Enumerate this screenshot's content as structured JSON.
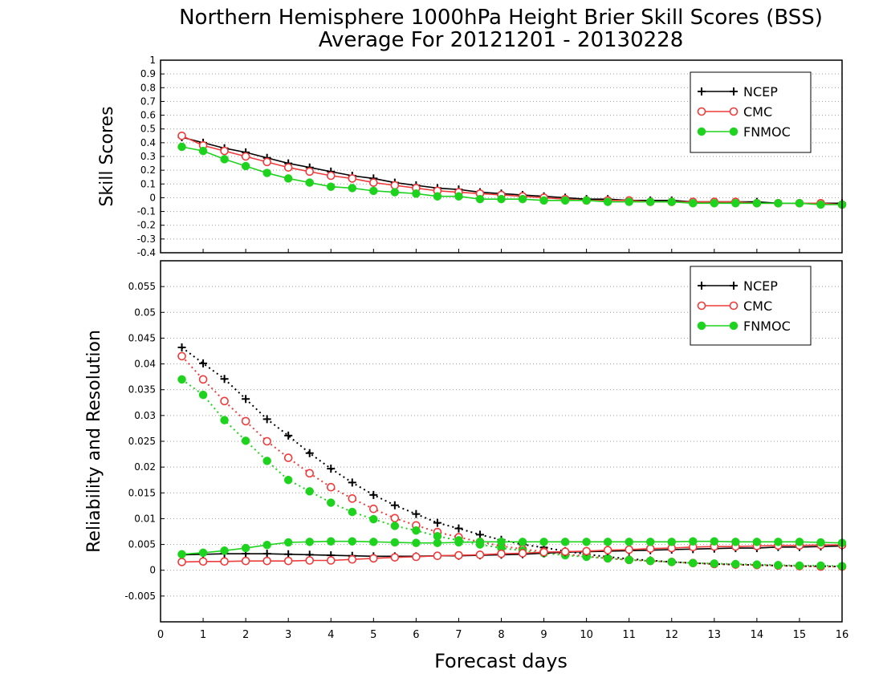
{
  "title_line1": "Northern Hemisphere 1000hPa Height Brier Skill Scores (BSS)",
  "title_line2": "Average For 20121201 - 20130228",
  "xlabel": "Forecast days",
  "colors": {
    "NCEP": "#000000",
    "CMC": "#ee3b3b",
    "FNMOC": "#1ed31e"
  },
  "chart_data": [
    {
      "type": "line",
      "ylabel": "Skill Scores",
      "xlim": [
        0,
        16
      ],
      "ylim": [
        -0.4,
        1
      ],
      "x_ticks": [
        0,
        1,
        2,
        3,
        4,
        5,
        6,
        7,
        8,
        9,
        10,
        11,
        12,
        13,
        14,
        15,
        16
      ],
      "y_ticks": [
        "-0.4",
        "-0.3",
        "-0.2",
        "-0.1",
        "0",
        "0.1",
        "0.2",
        "0.3",
        "0.4",
        "0.5",
        "0.6",
        "0.7",
        "0.8",
        "0.9",
        "1"
      ],
      "grid": true,
      "legend_position": "top-right",
      "x": [
        0.5,
        1,
        1.5,
        2,
        2.5,
        3,
        3.5,
        4,
        4.5,
        5,
        5.5,
        6,
        6.5,
        7,
        7.5,
        8,
        8.5,
        9,
        9.5,
        10,
        10.5,
        11,
        11.5,
        12,
        12.5,
        13,
        13.5,
        14,
        14.5,
        15,
        15.5,
        16
      ],
      "series": [
        {
          "name": "NCEP",
          "marker": "plus",
          "style": "solid",
          "values": [
            0.44,
            0.4,
            0.36,
            0.33,
            0.29,
            0.25,
            0.22,
            0.19,
            0.16,
            0.14,
            0.11,
            0.09,
            0.07,
            0.06,
            0.04,
            0.03,
            0.02,
            0.01,
            0.0,
            -0.01,
            -0.01,
            -0.02,
            -0.02,
            -0.02,
            -0.03,
            -0.03,
            -0.03,
            -0.03,
            -0.04,
            -0.04,
            -0.04,
            -0.04
          ]
        },
        {
          "name": "CMC",
          "marker": "circle-open",
          "style": "solid",
          "values": [
            0.45,
            0.38,
            0.34,
            0.3,
            0.26,
            0.22,
            0.19,
            0.16,
            0.14,
            0.11,
            0.09,
            0.07,
            0.05,
            0.04,
            0.03,
            0.02,
            0.01,
            0.0,
            -0.01,
            -0.02,
            -0.02,
            -0.02,
            -0.03,
            -0.03,
            -0.03,
            -0.03,
            -0.03,
            -0.04,
            -0.04,
            -0.04,
            -0.04,
            -0.05
          ]
        },
        {
          "name": "FNMOC",
          "marker": "circle-filled",
          "style": "solid",
          "values": [
            0.37,
            0.34,
            0.28,
            0.23,
            0.18,
            0.14,
            0.11,
            0.08,
            0.07,
            0.05,
            0.04,
            0.03,
            0.01,
            0.01,
            -0.01,
            -0.01,
            -0.01,
            -0.02,
            -0.02,
            -0.02,
            -0.03,
            -0.03,
            -0.03,
            -0.03,
            -0.04,
            -0.04,
            -0.04,
            -0.04,
            -0.04,
            -0.04,
            -0.05,
            -0.05
          ]
        }
      ]
    },
    {
      "type": "line",
      "ylabel": "Reliability and Resolution",
      "xlim": [
        0,
        16
      ],
      "ylim": [
        -0.01,
        0.06
      ],
      "x_ticks": [
        0,
        1,
        2,
        3,
        4,
        5,
        6,
        7,
        8,
        9,
        10,
        11,
        12,
        13,
        14,
        15,
        16
      ],
      "y_ticks": [
        "-0.005",
        "0",
        "0.005",
        "0.01",
        "0.015",
        "0.02",
        "0.025",
        "0.03",
        "0.035",
        "0.04",
        "0.045",
        "0.05",
        "0.055"
      ],
      "grid": true,
      "legend_position": "top-right",
      "x": [
        0.5,
        1,
        1.5,
        2,
        2.5,
        3,
        3.5,
        4,
        4.5,
        5,
        5.5,
        6,
        6.5,
        7,
        7.5,
        8,
        8.5,
        9,
        9.5,
        10,
        10.5,
        11,
        11.5,
        12,
        12.5,
        13,
        13.5,
        14,
        14.5,
        15,
        15.5,
        16
      ],
      "series": [
        {
          "name": "NCEP",
          "group": "resolution",
          "marker": "plus",
          "style": "dotted",
          "values": [
            0.0432,
            0.0401,
            0.0371,
            0.0332,
            0.0293,
            0.0261,
            0.0227,
            0.0197,
            0.017,
            0.0146,
            0.0126,
            0.0109,
            0.0092,
            0.0081,
            0.0069,
            0.0059,
            0.005,
            0.0044,
            0.0037,
            0.0031,
            0.0026,
            0.0022,
            0.0019,
            0.0016,
            0.0014,
            0.0012,
            0.0011,
            0.001,
            0.0009,
            0.0008,
            0.0008,
            0.0007
          ]
        },
        {
          "name": "CMC",
          "group": "resolution",
          "marker": "circle-open",
          "style": "dotted",
          "values": [
            0.0415,
            0.037,
            0.0328,
            0.0289,
            0.025,
            0.0218,
            0.0188,
            0.0161,
            0.0139,
            0.0119,
            0.0101,
            0.0087,
            0.0074,
            0.0064,
            0.0055,
            0.0047,
            0.0041,
            0.0036,
            0.0031,
            0.0027,
            0.0023,
            0.002,
            0.0018,
            0.0016,
            0.0014,
            0.0012,
            0.0011,
            0.001,
            0.0009,
            0.0008,
            0.0007,
            0.0007
          ]
        },
        {
          "name": "FNMOC",
          "group": "resolution",
          "marker": "circle-filled",
          "style": "dotted",
          "values": [
            0.037,
            0.034,
            0.0291,
            0.0251,
            0.0212,
            0.0175,
            0.0153,
            0.0131,
            0.0113,
            0.0099,
            0.0086,
            0.0077,
            0.0066,
            0.0058,
            0.005,
            0.0043,
            0.0038,
            0.0033,
            0.0029,
            0.0026,
            0.0023,
            0.002,
            0.0018,
            0.0016,
            0.0014,
            0.0013,
            0.0012,
            0.0011,
            0.001,
            0.0009,
            0.0009,
            0.0008
          ]
        },
        {
          "name": "NCEP",
          "group": "reliability",
          "marker": "plus",
          "style": "solid",
          "values": [
            0.003,
            0.0031,
            0.0032,
            0.0032,
            0.0032,
            0.0031,
            0.003,
            0.0029,
            0.0028,
            0.0027,
            0.0027,
            0.0027,
            0.0028,
            0.0028,
            0.0029,
            0.003,
            0.0031,
            0.0033,
            0.0035,
            0.0036,
            0.0037,
            0.0038,
            0.0039,
            0.004,
            0.0041,
            0.0042,
            0.0043,
            0.0043,
            0.0045,
            0.0045,
            0.0046,
            0.0047
          ]
        },
        {
          "name": "CMC",
          "group": "reliability",
          "marker": "circle-open",
          "style": "solid",
          "values": [
            0.0016,
            0.0017,
            0.0017,
            0.0018,
            0.0018,
            0.0018,
            0.0019,
            0.0019,
            0.0021,
            0.0023,
            0.0025,
            0.0026,
            0.0028,
            0.0029,
            0.003,
            0.0032,
            0.0033,
            0.0035,
            0.0036,
            0.0037,
            0.0039,
            0.004,
            0.0042,
            0.0043,
            0.0045,
            0.0046,
            0.0046,
            0.0047,
            0.0048,
            0.0048,
            0.0049,
            0.0049
          ]
        },
        {
          "name": "FNMOC",
          "group": "reliability",
          "marker": "circle-filled",
          "style": "solid",
          "values": [
            0.0031,
            0.0034,
            0.0038,
            0.0043,
            0.0049,
            0.0054,
            0.0055,
            0.0056,
            0.0056,
            0.0055,
            0.0054,
            0.0053,
            0.0053,
            0.0054,
            0.0055,
            0.0055,
            0.0055,
            0.0055,
            0.0055,
            0.0055,
            0.0055,
            0.0055,
            0.0055,
            0.0055,
            0.0056,
            0.0056,
            0.0055,
            0.0055,
            0.0055,
            0.0055,
            0.0054,
            0.0053
          ]
        }
      ]
    }
  ]
}
